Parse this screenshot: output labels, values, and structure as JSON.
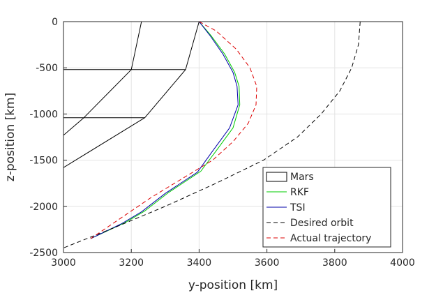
{
  "chart_data": {
    "type": "line",
    "xlabel": "y-position [km]",
    "ylabel": "z-position [km]",
    "xlim": [
      3000,
      4000
    ],
    "ylim": [
      -2500,
      0
    ],
    "xticks": [
      "3000",
      "3200",
      "3400",
      "3600",
      "3800",
      "4000"
    ],
    "yticks": [
      "0",
      "-500",
      "-1000",
      "-1500",
      "-2000",
      "-2500"
    ],
    "grid": true,
    "legend_position": "bottom-right",
    "series": [
      {
        "name": "Mars",
        "style": "solid",
        "color": "#000000",
        "segments": [
          [
            [
              3000,
              0
            ],
            [
              3400,
              0
            ]
          ],
          [
            [
              3000,
              -520
            ],
            [
              3360,
              -520
            ]
          ],
          [
            [
              3000,
              -1040
            ],
            [
              3240,
              -1040
            ]
          ],
          [
            [
              3230,
              0
            ],
            [
              3200,
              -520
            ],
            [
              3060,
              -1040
            ],
            [
              3000,
              -1230
            ]
          ],
          [
            [
              3400,
              0
            ],
            [
              3360,
              -520
            ],
            [
              3240,
              -1040
            ],
            [
              3000,
              -1580
            ]
          ]
        ]
      },
      {
        "name": "RKF",
        "style": "solid",
        "color": "#00cc00",
        "x": [
          3400,
          3435,
          3475,
          3505,
          3518,
          3520,
          3500,
          3450,
          3405,
          3310,
          3240,
          3180,
          3080
        ],
        "y": [
          0,
          -150,
          -350,
          -550,
          -700,
          -900,
          -1150,
          -1400,
          -1620,
          -1850,
          -2050,
          -2180,
          -2350
        ]
      },
      {
        "name": "TSI",
        "style": "solid",
        "color": "#0000aa",
        "x": [
          3400,
          3432,
          3470,
          3500,
          3512,
          3515,
          3490,
          3440,
          3395,
          3300,
          3230,
          3170,
          3080
        ],
        "y": [
          0,
          -150,
          -350,
          -550,
          -700,
          -900,
          -1150,
          -1400,
          -1630,
          -1860,
          -2060,
          -2190,
          -2350
        ]
      },
      {
        "name": "Desired orbit",
        "style": "dashed",
        "color": "#000000",
        "x": [
          3875,
          3870,
          3850,
          3815,
          3760,
          3690,
          3590,
          3450,
          3300,
          3150,
          3000
        ],
        "y": [
          0,
          -250,
          -500,
          -750,
          -1000,
          -1250,
          -1500,
          -1750,
          -2000,
          -2230,
          -2450
        ]
      },
      {
        "name": "Actual trajectory",
        "style": "dashed",
        "color": "#dd0000",
        "x": [
          3400,
          3450,
          3510,
          3550,
          3570,
          3568,
          3545,
          3500,
          3440,
          3350,
          3260,
          3180,
          3080
        ],
        "y": [
          0,
          -100,
          -300,
          -500,
          -700,
          -900,
          -1100,
          -1300,
          -1500,
          -1700,
          -1900,
          -2100,
          -2350
        ]
      }
    ]
  }
}
